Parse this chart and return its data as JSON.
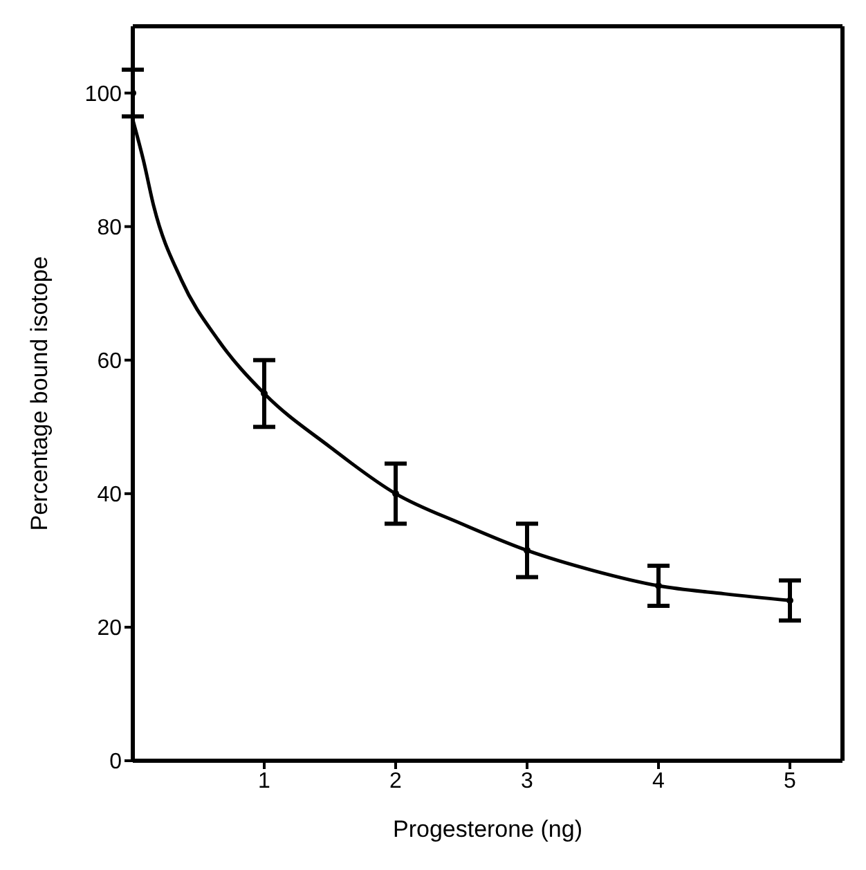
{
  "chart_data": {
    "type": "scatter",
    "xlabel": "Progesterone (ng)",
    "ylabel": "Percentage bound isotope",
    "xlim": [
      0,
      5.4
    ],
    "xticks": [
      1,
      2,
      3,
      4,
      5
    ],
    "ylim": [
      0,
      110
    ],
    "yticks": [
      0,
      20,
      40,
      60,
      80,
      100
    ],
    "line_style": "solid",
    "series": [
      {
        "color": "#000000",
        "marker": "circle",
        "x": [
          0,
          1,
          2,
          3,
          4,
          5
        ],
        "values": [
          100,
          55,
          40,
          31.5,
          26.2,
          24
        ],
        "errors": [
          3.5,
          5,
          4.5,
          4,
          3,
          3
        ]
      },
      {
        "type": "line",
        "color": "#000000",
        "marker": "none",
        "x": [
          0,
          0.08,
          0.16,
          0.37,
          0.65,
          1,
          1.5,
          2,
          2.5,
          3,
          3.5,
          4,
          4.5,
          5
        ],
        "values": [
          96,
          90,
          83,
          72,
          63,
          55,
          47,
          40,
          35.5,
          31.5,
          28.5,
          26.2,
          25,
          24
        ]
      }
    ]
  }
}
